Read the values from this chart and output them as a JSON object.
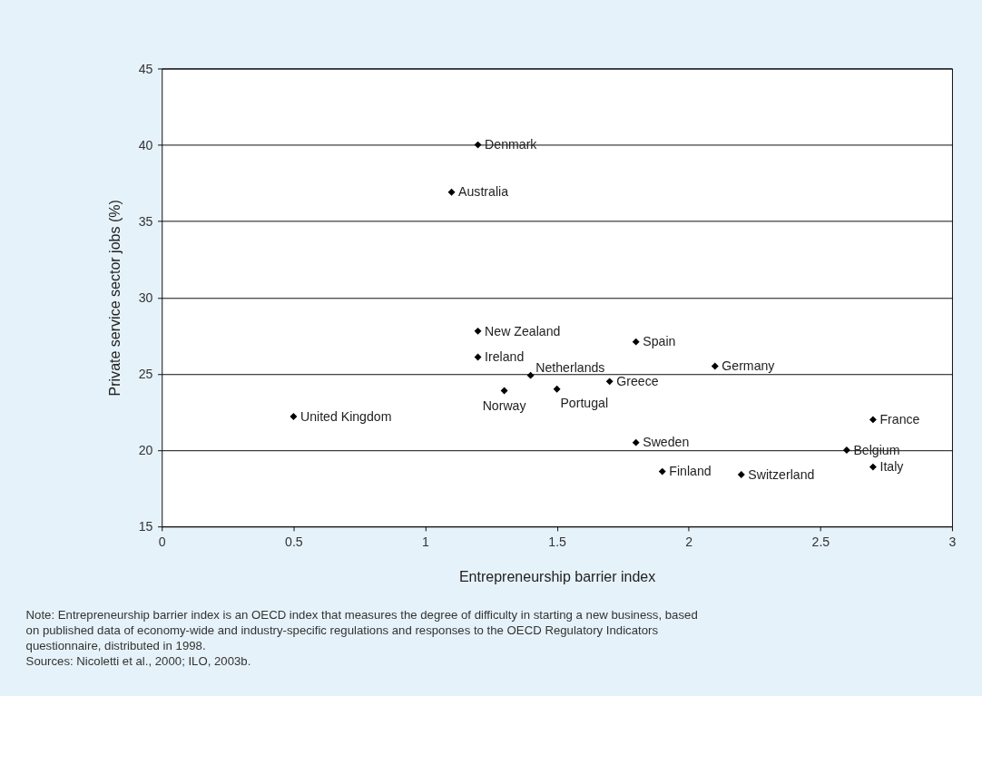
{
  "chart_data": {
    "type": "scatter",
    "xlabel": "Entrepreneurship barrier index",
    "ylabel": "Private service sector jobs (%)",
    "xlim": [
      0,
      3
    ],
    "xticks": [
      0,
      0.5,
      1,
      1.5,
      2,
      2.5,
      3
    ],
    "ylim": [
      15,
      45
    ],
    "yticks": [
      15,
      20,
      25,
      30,
      35,
      40,
      45
    ],
    "grid": "y",
    "marker": "diamond",
    "series": [
      {
        "color": "#000000",
        "x": [
          1.2,
          1.1,
          1.2,
          1.2,
          1.4,
          1.3,
          1.5,
          1.7,
          1.8,
          2.1,
          0.5,
          2.7,
          1.8,
          2.6,
          2.7,
          1.9,
          2.2
        ],
        "values": [
          40,
          36.9,
          27.8,
          26.1,
          24.9,
          23.9,
          24.0,
          24.5,
          27.1,
          25.5,
          22.2,
          22.0,
          20.5,
          20.0,
          18.9,
          18.6,
          18.4
        ]
      }
    ],
    "annotations": [
      {
        "text": "Denmark",
        "x": 1.2,
        "y": 40
      },
      {
        "text": "Australia",
        "x": 1.1,
        "y": 36.9
      },
      {
        "text": "New Zealand",
        "x": 1.2,
        "y": 27.8
      },
      {
        "text": "Ireland",
        "x": 1.2,
        "y": 26.1
      },
      {
        "text": "Netherlands",
        "x": 1.4,
        "y": 24.9
      },
      {
        "text": "Norway",
        "x": 1.3,
        "y": 23.9
      },
      {
        "text": "Portugal",
        "x": 1.5,
        "y": 24.0
      },
      {
        "text": "Greece",
        "x": 1.7,
        "y": 24.5
      },
      {
        "text": "Spain",
        "x": 1.8,
        "y": 27.1
      },
      {
        "text": "Germany",
        "x": 2.1,
        "y": 25.5
      },
      {
        "text": "United Kingdom",
        "x": 0.5,
        "y": 22.2
      },
      {
        "text": "France",
        "x": 2.7,
        "y": 22.0
      },
      {
        "text": "Sweden",
        "x": 1.8,
        "y": 20.5
      },
      {
        "text": "Belgium",
        "x": 2.6,
        "y": 20.0
      },
      {
        "text": "Italy",
        "x": 2.7,
        "y": 18.9
      },
      {
        "text": "Finland",
        "x": 1.9,
        "y": 18.6
      },
      {
        "text": "Switzerland",
        "x": 2.2,
        "y": 18.4
      },
      "Note: Entrepreneurship barrier index is an OECD index that measures the degree of difficulty in starting a new business, based on published data of economy-wide and industry-specific regulations and responses to the OECD Regulatory Indicators questionnaire, distributed in 1998.",
      "Sources: Nicoletti et al., 2000; ILO, 2003b."
    ]
  }
}
